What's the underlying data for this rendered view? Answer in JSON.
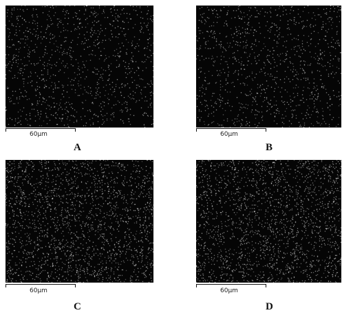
{
  "panels": [
    {
      "id": "A",
      "letter": "A",
      "scale_label": "60µm",
      "particle_density": 0.55
    },
    {
      "id": "B",
      "letter": "B",
      "scale_label": "60µm",
      "particle_density": 0.55
    },
    {
      "id": "C",
      "letter": "C",
      "scale_label": "60µm",
      "particle_density": 1.0
    },
    {
      "id": "D",
      "letter": "D",
      "scale_label": "60µm",
      "particle_density": 1.0
    }
  ],
  "colors": {
    "background": "#050505",
    "particle": "#ffffff"
  }
}
